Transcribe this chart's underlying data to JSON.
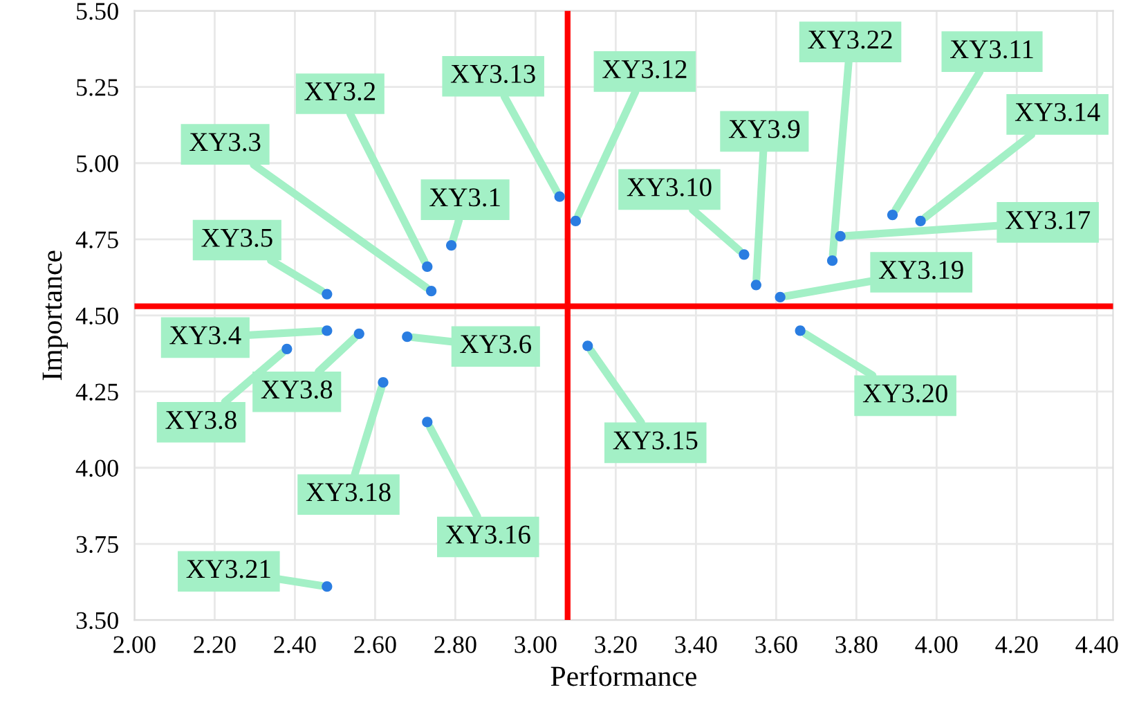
{
  "chart_data": {
    "type": "scatter",
    "xlabel": "Performance",
    "ylabel": "Importance",
    "x": [
      2.79,
      2.73,
      2.74,
      2.48,
      3.06,
      3.1,
      3.52,
      3.55,
      3.61,
      3.74,
      3.76,
      3.89,
      3.96,
      3.66,
      3.13,
      2.48,
      2.56,
      2.38,
      2.68,
      2.62,
      2.73,
      2.48
    ],
    "series": [
      {
        "color": "#2a7de1",
        "values": [
          4.73,
          4.66,
          4.58,
          4.57,
          4.89,
          4.81,
          4.7,
          4.6,
          4.56,
          4.68,
          4.76,
          4.83,
          4.81,
          4.45,
          4.4,
          4.45,
          4.44,
          4.39,
          4.43,
          4.28,
          4.15,
          3.61
        ]
      }
    ],
    "marker": "circle",
    "xlim": [
      2.0,
      4.44
    ],
    "ylim": [
      3.5,
      5.5
    ],
    "xticks": [
      {
        "value": 2.0,
        "label": "2.00"
      },
      {
        "value": 2.2,
        "label": "2.20"
      },
      {
        "value": 2.4,
        "label": "2.40"
      },
      {
        "value": 2.6,
        "label": "2.60"
      },
      {
        "value": 2.8,
        "label": "2.80"
      },
      {
        "value": 3.0,
        "label": "3.00"
      },
      {
        "value": 3.2,
        "label": "3.20"
      },
      {
        "value": 3.4,
        "label": "3.40"
      },
      {
        "value": 3.6,
        "label": "3.60"
      },
      {
        "value": 3.8,
        "label": "3.80"
      },
      {
        "value": 4.0,
        "label": "4.00"
      },
      {
        "value": 4.2,
        "label": "4.20"
      },
      {
        "value": 4.4,
        "label": "4.40"
      }
    ],
    "yticks": [
      {
        "value": 3.5,
        "label": "3.50"
      },
      {
        "value": 3.75,
        "label": "3.75"
      },
      {
        "value": 4.0,
        "label": "4.00"
      },
      {
        "value": 4.25,
        "label": "4.25"
      },
      {
        "value": 4.5,
        "label": "4.50"
      },
      {
        "value": 4.75,
        "label": "4.75"
      },
      {
        "value": 5.0,
        "label": "5.00"
      },
      {
        "value": 5.25,
        "label": "5.25"
      },
      {
        "value": 5.5,
        "label": "5.50"
      }
    ],
    "grid": true,
    "ref_lines": [
      {
        "axis": "x",
        "value": 3.08,
        "color": "#ff0000"
      },
      {
        "axis": "y",
        "value": 4.53,
        "color": "#ff0000"
      }
    ],
    "annotations": [
      {
        "text": "XY3.1",
        "x": 2.79,
        "y": 4.73
      },
      {
        "text": "XY3.2",
        "x": 2.73,
        "y": 4.66
      },
      {
        "text": "XY3.3",
        "x": 2.74,
        "y": 4.58
      },
      {
        "text": "XY3.5",
        "x": 2.48,
        "y": 4.57
      },
      {
        "text": "XY3.13",
        "x": 3.06,
        "y": 4.89
      },
      {
        "text": "XY3.12",
        "x": 3.1,
        "y": 4.81
      },
      {
        "text": "XY3.10",
        "x": 3.52,
        "y": 4.7
      },
      {
        "text": "XY3.9",
        "x": 3.55,
        "y": 4.6
      },
      {
        "text": "XY3.19",
        "x": 3.61,
        "y": 4.56
      },
      {
        "text": "XY3.22",
        "x": 3.74,
        "y": 4.68
      },
      {
        "text": "XY3.17",
        "x": 3.76,
        "y": 4.76
      },
      {
        "text": "XY3.11",
        "x": 3.89,
        "y": 4.83
      },
      {
        "text": "XY3.14",
        "x": 3.96,
        "y": 4.81
      },
      {
        "text": "XY3.20",
        "x": 3.66,
        "y": 4.45
      },
      {
        "text": "XY3.15",
        "x": 3.13,
        "y": 4.4
      },
      {
        "text": "XY3.4",
        "x": 2.48,
        "y": 4.45
      },
      {
        "text": "XY3.8",
        "x": 2.56,
        "y": 4.44
      },
      {
        "text": "XY3.8",
        "x": 2.38,
        "y": 4.39
      },
      {
        "text": "XY3.6",
        "x": 2.68,
        "y": 4.43
      },
      {
        "text": "XY3.18",
        "x": 2.62,
        "y": 4.28
      },
      {
        "text": "XY3.16",
        "x": 2.73,
        "y": 4.15
      },
      {
        "text": "XY3.21",
        "x": 2.48,
        "y": 3.61
      }
    ]
  }
}
